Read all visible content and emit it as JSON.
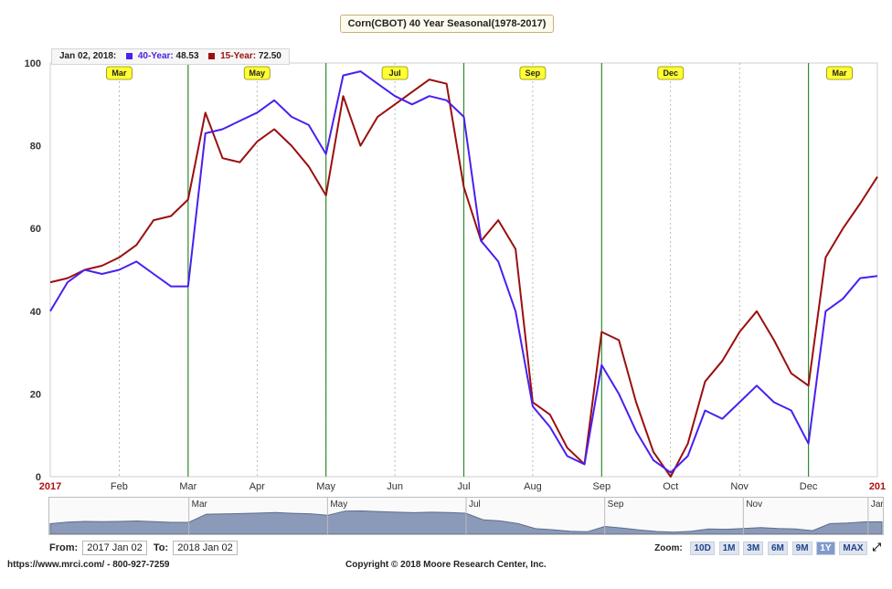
{
  "header": {
    "title": "Corn(CBOT) 40 Year Seasonal(1978-2017)"
  },
  "legend": {
    "date": "Jan 02, 2018:",
    "s40_label": "40-Year:",
    "s40_value": "48.53",
    "s15_label": "15-Year:",
    "s15_value": "72.50"
  },
  "colors": {
    "s40": "#4a1ff0",
    "s15": "#9b0f0f",
    "vline": "#2e8b2e"
  },
  "chart_data": {
    "type": "line",
    "title": "Corn(CBOT) 40 Year Seasonal(1978-2017)",
    "ylim": [
      0,
      100
    ],
    "y_ticks": [
      0,
      20,
      40,
      60,
      80,
      100
    ],
    "x_tick_labels": [
      "2017",
      "Feb",
      "Mar",
      "Apr",
      "May",
      "Jun",
      "Jul",
      "Aug",
      "Sep",
      "Oct",
      "Nov",
      "Dec",
      "201"
    ],
    "season_labels": [
      "Mar",
      "May",
      "Jul",
      "Sep",
      "Dec",
      "Mar"
    ],
    "x": [
      0,
      0.25,
      0.5,
      0.75,
      1,
      1.25,
      1.5,
      1.75,
      2,
      2.25,
      2.5,
      2.75,
      3,
      3.25,
      3.5,
      3.75,
      4,
      4.25,
      4.5,
      4.75,
      5,
      5.25,
      5.5,
      5.75,
      6,
      6.25,
      6.5,
      6.75,
      7,
      7.25,
      7.5,
      7.75,
      8,
      8.25,
      8.5,
      8.75,
      9,
      9.25,
      9.5,
      9.75,
      10,
      10.25,
      10.5,
      10.75,
      11,
      11.25,
      11.5,
      11.75,
      12
    ],
    "series": [
      {
        "name": "40-Year",
        "values": [
          40,
          47,
          50,
          49,
          50,
          52,
          49,
          46,
          46,
          83,
          84,
          86,
          88,
          91,
          87,
          85,
          78,
          97,
          98,
          95,
          92,
          90,
          92,
          91,
          87,
          57,
          52,
          40,
          17,
          12,
          5,
          3,
          27,
          20,
          11,
          4,
          1,
          5,
          16,
          14,
          18,
          22,
          18,
          16,
          8,
          40,
          43,
          48,
          48.53
        ]
      },
      {
        "name": "15-Year",
        "values": [
          47,
          48,
          50,
          51,
          53,
          56,
          62,
          63,
          67,
          88,
          77,
          76,
          81,
          84,
          80,
          75,
          68,
          92,
          80,
          87,
          90,
          93,
          96,
          95,
          70,
          57,
          62,
          55,
          18,
          15,
          7,
          3,
          35,
          33,
          18,
          6,
          0,
          8,
          23,
          28,
          35,
          40,
          33,
          25,
          22,
          53,
          60,
          66,
          72.5
        ]
      }
    ],
    "seasonal_vertical_lines": [
      "Mar",
      "May",
      "Jul",
      "Sep",
      "Dec"
    ]
  },
  "navigator": {
    "labels": [
      "Mar",
      "May",
      "Jul",
      "Sep",
      "Nov",
      "Jan"
    ]
  },
  "range": {
    "from_label": "From:",
    "from_value": "2017 Jan 02",
    "to_label": "To:",
    "to_value": "2018 Jan 02"
  },
  "zoom": {
    "label": "Zoom:",
    "buttons": [
      "10D",
      "1M",
      "3M",
      "6M",
      "9M",
      "1Y",
      "MAX"
    ],
    "active": "1Y"
  },
  "footer": {
    "left": "https://www.mrci.com/ - 800-927-7259",
    "center": "Copyright © 2018 Moore Research Center, Inc."
  }
}
